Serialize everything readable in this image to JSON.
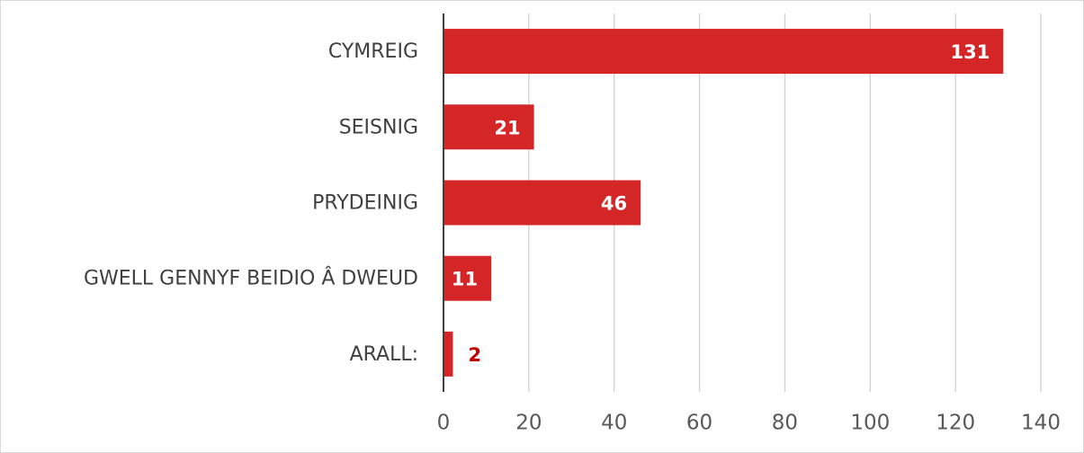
{
  "chart_data": {
    "type": "barh",
    "categories": [
      "CYMREIG",
      "SEISNIG",
      "PRYDEINIG",
      "GWELL GENNYF BEIDIO Â DWEUD",
      "ARALL:"
    ],
    "values": [
      131,
      21,
      46,
      11,
      2
    ],
    "color": "#d42527",
    "xlim": [
      0,
      140
    ],
    "xticks": [
      0,
      20,
      40,
      60,
      80,
      100,
      120,
      140
    ],
    "grid": true
  }
}
